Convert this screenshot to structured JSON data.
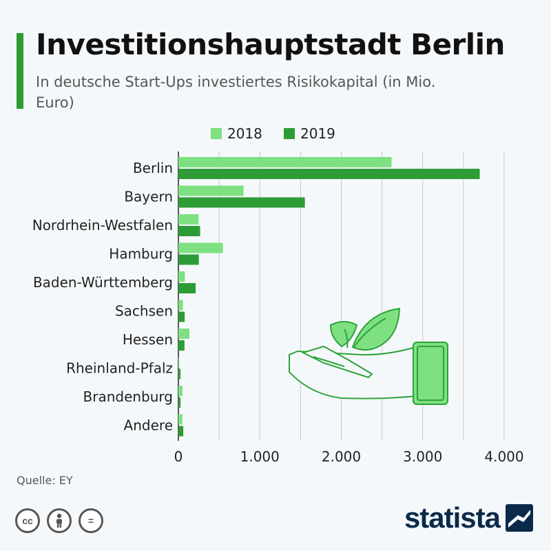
{
  "header": {
    "title": "Investitionshauptstadt Berlin",
    "subtitle": "In deutsche Start-Ups investiertes Risikokapital (in Mio. Euro)"
  },
  "legend": {
    "label_2018": "2018",
    "label_2019": "2019"
  },
  "colors": {
    "accent": "#2e9c36",
    "series_2018": "#7ee081",
    "series_2019": "#2e9c36",
    "grid": "#c8c8c8",
    "illustration": "#2ba33a",
    "illustration_fill": "#7ee081"
  },
  "chart_data": {
    "type": "bar",
    "orientation": "horizontal",
    "categories": [
      "Berlin",
      "Bayern",
      "Nordrhein-Westfalen",
      "Hamburg",
      "Baden-Württemberg",
      "Sachsen",
      "Hessen",
      "Rheinland-Pfalz",
      "Brandenburg",
      "Andere"
    ],
    "series": [
      {
        "name": "2018",
        "values": [
          2617,
          800,
          248,
          546,
          80,
          55,
          135,
          10,
          50,
          50
        ]
      },
      {
        "name": "2019",
        "values": [
          3700,
          1553,
          267,
          251,
          212,
          77,
          75,
          26,
          26,
          60
        ]
      }
    ],
    "xlim": [
      0,
      4000
    ],
    "xticks": [
      0,
      1000,
      2000,
      3000,
      4000
    ],
    "xtick_labels": [
      "0",
      "1.000",
      "2.000",
      "3.000",
      "4.000"
    ],
    "grid": true,
    "legend_position": "top"
  },
  "footer": {
    "source": "Quelle: EY",
    "brand": "statista",
    "license_icons": [
      "cc-icon",
      "person-icon",
      "equals-icon"
    ],
    "license_cc_label": "cc",
    "license_equals_label": "="
  }
}
